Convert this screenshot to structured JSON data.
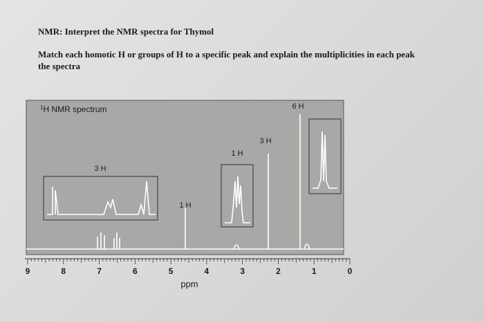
{
  "header": {
    "title": "NMR: Interpret the NMR spectra for Thymol",
    "instructions": [
      "Match each homotic H or groups of H to a specific peak and explain the multiplicities in each peak",
      "the spectra"
    ]
  },
  "spectrum": {
    "superscript": "1",
    "title": "H NMR spectrum",
    "peak_labels": [
      "3 H",
      "1 H",
      "1 H",
      "3 H",
      "6 H"
    ],
    "axis_ticks": [
      9,
      8,
      7,
      6,
      5,
      4,
      3,
      2,
      1,
      0
    ],
    "axis_label": "ppm"
  }
}
